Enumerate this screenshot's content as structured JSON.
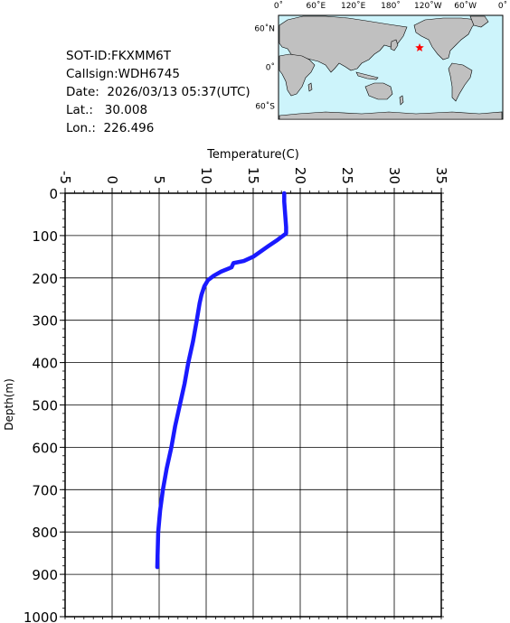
{
  "info": {
    "sot_id": "SOT-ID:FKXMM6T",
    "callsign": "Callsign:WDH6745",
    "date": "Date:  2026/03/13 05:37(UTC)",
    "lat": "Lat.:   30.008",
    "lon": "Lon.:  226.496"
  },
  "map": {
    "lon_labels": [
      "0˚",
      "60˚E",
      "120˚E",
      "180˚",
      "120˚W",
      "60˚W",
      "0˚"
    ],
    "lat_labels": [
      "60˚N",
      "0˚",
      "60˚S"
    ],
    "ocean_color": "#cdf4fb",
    "land_color": "#c0c0c0",
    "marker": {
      "lat": 30.008,
      "lon": 226.496,
      "color": "#ff0000",
      "symbol": "star"
    }
  },
  "chart_data": {
    "type": "line",
    "xlabel": "Temperature(C)",
    "ylabel": "Depth(m)",
    "xlim": [
      -5,
      35
    ],
    "ylim": [
      0,
      1000
    ],
    "y_inverted": true,
    "x_axis_position": "top",
    "grid": true,
    "x_ticks": [
      -5,
      0,
      5,
      10,
      15,
      20,
      25,
      30,
      35
    ],
    "y_ticks": [
      0,
      100,
      200,
      300,
      400,
      500,
      600,
      700,
      800,
      900,
      1000
    ],
    "series_color": "#1a1aff",
    "series": [
      {
        "x": [
          18.3,
          18.3,
          18.4,
          18.5,
          18.5,
          17.6,
          16.6,
          15.0,
          14.0,
          12.9,
          12.7,
          11.6,
          10.8,
          10.2,
          9.8,
          9.5,
          9.3,
          9.0,
          8.6,
          8.1,
          7.7,
          7.2,
          6.7,
          6.3,
          5.8,
          5.4,
          5.1,
          4.9,
          4.8
        ],
        "y": [
          0,
          20,
          50,
          80,
          95,
          110,
          125,
          150,
          160,
          165,
          175,
          185,
          195,
          205,
          220,
          240,
          260,
          300,
          350,
          400,
          450,
          500,
          550,
          600,
          650,
          700,
          750,
          800,
          883
        ]
      }
    ]
  }
}
